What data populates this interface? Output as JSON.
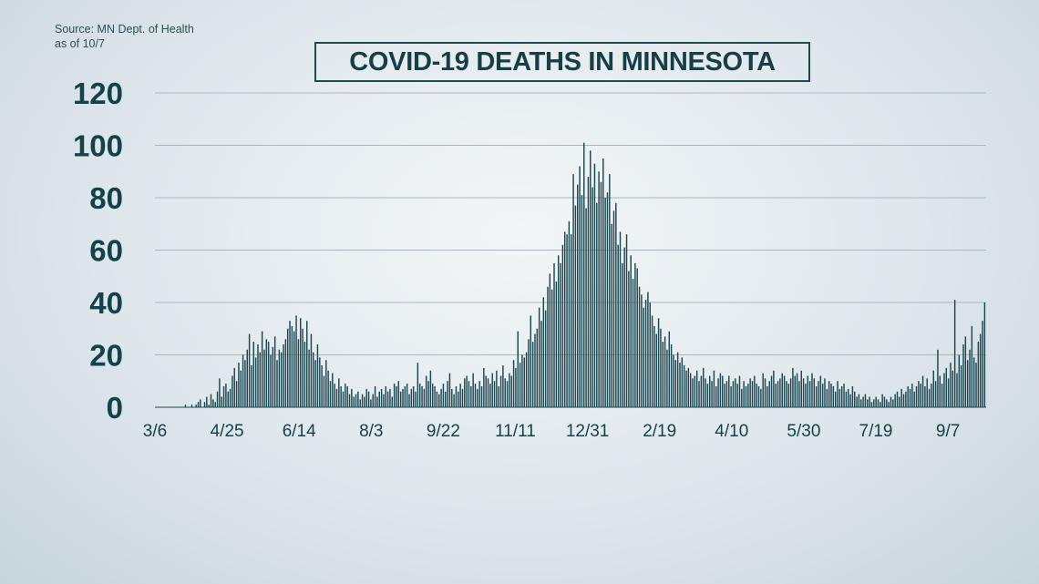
{
  "source": {
    "line1": "Source: MN Dept. of Health",
    "line2": "as of 10/7"
  },
  "title": "COVID-19 DEATHS IN MINNESOTA",
  "colors": {
    "bar": "#1c4750",
    "grid": "#aab7be",
    "text": "#14424b"
  },
  "chart_data": {
    "type": "bar",
    "title": "COVID-19 DEATHS IN MINNESOTA",
    "xlabel": "",
    "ylabel": "",
    "ylim": [
      0,
      120
    ],
    "yticks": [
      0,
      20,
      40,
      60,
      80,
      100,
      120
    ],
    "xtick_labels": [
      "3/6",
      "4/25",
      "6/14",
      "8/3",
      "9/22",
      "11/11",
      "12/31",
      "2/19",
      "4/10",
      "5/30",
      "7/19",
      "9/7"
    ],
    "grid": true,
    "series": [
      {
        "name": "",
        "values": [
          0,
          0,
          0,
          0,
          0,
          0,
          0,
          0,
          0,
          0,
          0,
          0,
          0,
          0,
          1,
          0,
          0,
          1,
          0,
          1,
          2,
          3,
          0,
          2,
          4,
          1,
          5,
          3,
          2,
          6,
          11,
          4,
          8,
          9,
          6,
          7,
          12,
          15,
          10,
          17,
          14,
          20,
          18,
          22,
          28,
          16,
          25,
          19,
          24,
          21,
          29,
          22,
          26,
          25,
          20,
          23,
          27,
          18,
          22,
          21,
          24,
          26,
          30,
          33,
          31,
          29,
          35,
          26,
          34,
          30,
          25,
          33,
          22,
          28,
          21,
          18,
          24,
          19,
          16,
          12,
          18,
          14,
          10,
          13,
          9,
          7,
          11,
          8,
          6,
          9,
          8,
          5,
          7,
          4,
          5,
          6,
          3,
          5,
          4,
          7,
          6,
          3,
          5,
          8,
          4,
          6,
          7,
          5,
          8,
          6,
          7,
          4,
          9,
          8,
          10,
          6,
          7,
          8,
          9,
          5,
          7,
          8,
          6,
          17,
          9,
          8,
          7,
          12,
          10,
          14,
          9,
          8,
          6,
          5,
          7,
          9,
          6,
          10,
          13,
          7,
          5,
          8,
          6,
          9,
          7,
          11,
          12,
          10,
          8,
          13,
          9,
          7,
          10,
          8,
          15,
          12,
          11,
          9,
          13,
          10,
          14,
          8,
          12,
          16,
          11,
          10,
          13,
          12,
          18,
          15,
          29,
          17,
          20,
          19,
          21,
          26,
          35,
          25,
          28,
          30,
          38,
          33,
          42,
          37,
          46,
          51,
          45,
          55,
          48,
          58,
          55,
          62,
          67,
          66,
          71,
          66,
          89,
          77,
          85,
          92,
          81,
          101,
          76,
          88,
          98,
          84,
          93,
          78,
          90,
          86,
          95,
          80,
          82,
          89,
          70,
          75,
          78,
          62,
          67,
          55,
          61,
          66,
          52,
          58,
          49,
          55,
          53,
          46,
          43,
          38,
          41,
          44,
          40,
          35,
          31,
          28,
          34,
          30,
          25,
          27,
          22,
          29,
          24,
          20,
          18,
          21,
          17,
          19,
          16,
          14,
          15,
          13,
          11,
          12,
          14,
          10,
          12,
          15,
          11,
          9,
          12,
          10,
          14,
          8,
          11,
          13,
          12,
          9,
          10,
          12,
          8,
          10,
          11,
          9,
          12,
          7,
          10,
          8,
          9,
          11,
          10,
          12,
          9,
          8,
          7,
          13,
          11,
          8,
          10,
          12,
          14,
          9,
          10,
          11,
          13,
          12,
          10,
          9,
          11,
          15,
          12,
          13,
          10,
          14,
          11,
          9,
          12,
          10,
          13,
          11,
          8,
          10,
          12,
          9,
          11,
          7,
          10,
          9,
          8,
          6,
          10,
          7,
          8,
          9,
          6,
          7,
          5,
          8,
          6,
          4,
          5,
          3,
          4,
          5,
          3,
          4,
          2,
          3,
          4,
          3,
          2,
          5,
          4,
          3,
          2,
          4,
          3,
          5,
          6,
          4,
          7,
          5,
          6,
          8,
          7,
          9,
          6,
          8,
          10,
          9,
          12,
          8,
          11,
          7,
          9,
          14,
          10,
          22,
          12,
          9,
          13,
          15,
          11,
          17,
          14,
          41,
          13,
          20,
          16,
          24,
          27,
          18,
          22,
          31,
          19,
          17,
          25,
          28,
          33,
          40
        ]
      }
    ]
  }
}
